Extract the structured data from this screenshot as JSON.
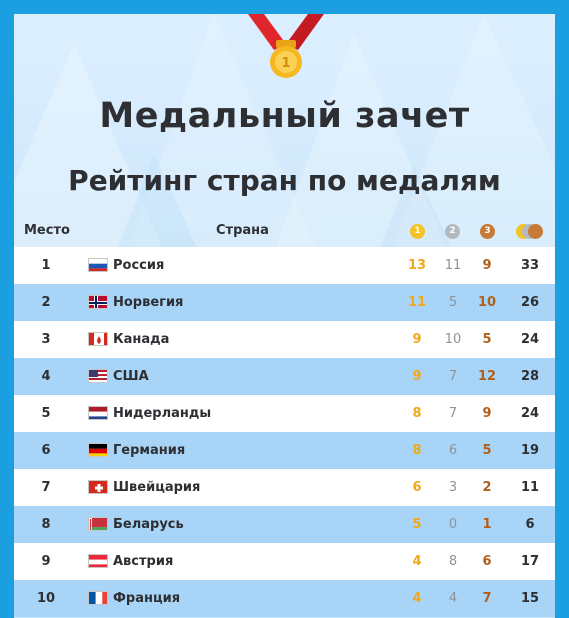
{
  "title": "Медальный зачет",
  "subtitle": "Рейтинг стран по медалям",
  "header": {
    "place": "Место",
    "country": "Страна",
    "gold_mark": "1",
    "silver_mark": "2",
    "bronze_mark": "3"
  },
  "colors": {
    "gold": "#f0a81c",
    "silver": "#8d9499",
    "bronze": "#b0601c",
    "row_alt": "#a8d5f7"
  },
  "rows": [
    {
      "place": "1",
      "country": "Россия",
      "flag": "ru-flag",
      "gold": "13",
      "silver": "11",
      "bronze": "9",
      "total": "33"
    },
    {
      "place": "2",
      "country": "Норвегия",
      "flag": "no-flag",
      "gold": "11",
      "silver": "5",
      "bronze": "10",
      "total": "26"
    },
    {
      "place": "3",
      "country": "Канада",
      "flag": "ca-flag",
      "gold": "9",
      "silver": "10",
      "bronze": "5",
      "total": "24"
    },
    {
      "place": "4",
      "country": "США",
      "flag": "us-flag",
      "gold": "9",
      "silver": "7",
      "bronze": "12",
      "total": "28"
    },
    {
      "place": "5",
      "country": "Нидерланды",
      "flag": "nl-flag",
      "gold": "8",
      "silver": "7",
      "bronze": "9",
      "total": "24"
    },
    {
      "place": "6",
      "country": "Германия",
      "flag": "de-flag",
      "gold": "8",
      "silver": "6",
      "bronze": "5",
      "total": "19"
    },
    {
      "place": "7",
      "country": "Швейцария",
      "flag": "ch-flag",
      "gold": "6",
      "silver": "3",
      "bronze": "2",
      "total": "11"
    },
    {
      "place": "8",
      "country": "Беларусь",
      "flag": "by-flag",
      "gold": "5",
      "silver": "0",
      "bronze": "1",
      "total": "6"
    },
    {
      "place": "9",
      "country": "Австрия",
      "flag": "at-flag",
      "gold": "4",
      "silver": "8",
      "bronze": "6",
      "total": "17"
    },
    {
      "place": "10",
      "country": "Франция",
      "flag": "fr-flag",
      "gold": "4",
      "silver": "4",
      "bronze": "7",
      "total": "15"
    }
  ]
}
